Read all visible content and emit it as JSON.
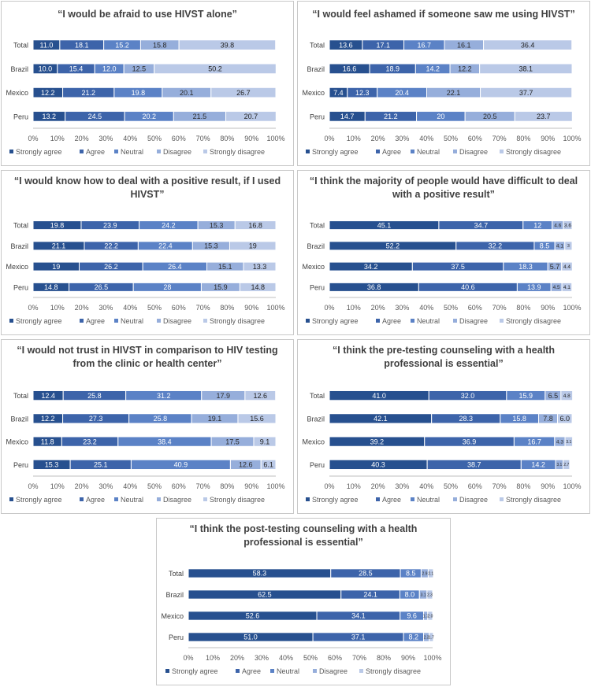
{
  "figure": {
    "legend_labels": [
      "Strongly agree",
      "Agree",
      "Neutral",
      "Disagree",
      "Strongly disagree"
    ],
    "colors": [
      "#27508f",
      "#3d64aa",
      "#5b82c6",
      "#96aedb",
      "#bac9e7"
    ],
    "label_colors": [
      "#ffffff",
      "#ffffff",
      "#ffffff",
      "#2b2b2b",
      "#1f1f1f"
    ]
  },
  "chart_data": [
    {
      "type": "bar",
      "orientation": "horizontal",
      "stacked": true,
      "title_lines": [
        "“I would be afraid to use HIVST alone”"
      ],
      "categories": [
        "Total",
        "Brazil",
        "Mexico",
        "Peru"
      ],
      "series": [
        {
          "name": "Strongly agree",
          "values": [
            11.0,
            10.0,
            12.2,
            13.2
          ],
          "labels": [
            "11.0",
            "10.0",
            "12.2",
            "13.2"
          ]
        },
        {
          "name": "Agree",
          "values": [
            18.1,
            15.4,
            21.2,
            24.5
          ],
          "labels": [
            "18.1",
            "15.4",
            "21.2",
            "24.5"
          ]
        },
        {
          "name": "Neutral",
          "values": [
            15.2,
            12.0,
            19.8,
            20.2
          ],
          "labels": [
            "15.2",
            "12.0",
            "19.8",
            "20.2"
          ]
        },
        {
          "name": "Disagree",
          "values": [
            15.8,
            12.5,
            20.1,
            21.5
          ],
          "labels": [
            "15.8",
            "12.5",
            "20.1",
            "21.5"
          ]
        },
        {
          "name": "Strongly disagree",
          "values": [
            39.8,
            50.2,
            26.7,
            20.7
          ],
          "labels": [
            "39.8",
            "50.2",
            "26.7",
            "20.7"
          ]
        }
      ],
      "xlim": [
        0,
        100
      ],
      "xticks": [
        "0%",
        "10%",
        "20%",
        "30%",
        "40%",
        "50%",
        "60%",
        "70%",
        "80%",
        "90%",
        "100%"
      ],
      "legend": "bottom"
    },
    {
      "type": "bar",
      "orientation": "horizontal",
      "stacked": true,
      "title_lines": [
        "“I would feel ashamed if someone saw me using HIVST”"
      ],
      "categories": [
        "Total",
        "Brazil",
        "Mexico",
        "Peru"
      ],
      "series": [
        {
          "name": "Strongly agree",
          "values": [
            13.6,
            16.6,
            7.4,
            14.7
          ],
          "labels": [
            "13.6",
            "16.6",
            "7.4",
            "14.7"
          ]
        },
        {
          "name": "Agree",
          "values": [
            17.1,
            18.9,
            12.3,
            21.2
          ],
          "labels": [
            "17.1",
            "18.9",
            "12.3",
            "21.2"
          ]
        },
        {
          "name": "Neutral",
          "values": [
            16.7,
            14.2,
            20.4,
            20
          ],
          "labels": [
            "16.7",
            "14.2",
            "20.4",
            "20"
          ]
        },
        {
          "name": "Disagree",
          "values": [
            16.1,
            12.2,
            22.1,
            20.5
          ],
          "labels": [
            "16.1",
            "12.2",
            "22.1",
            "20.5"
          ]
        },
        {
          "name": "Strongly disagree",
          "values": [
            36.4,
            38.1,
            37.7,
            23.7
          ],
          "labels": [
            "36.4",
            "38.1",
            "37.7",
            "23.7"
          ]
        }
      ],
      "xlim": [
        0,
        100
      ],
      "xticks": [
        "0%",
        "10%",
        "20%",
        "30%",
        "40%",
        "50%",
        "60%",
        "70%",
        "80%",
        "90%",
        "100%"
      ],
      "legend": "bottom"
    },
    {
      "type": "bar",
      "orientation": "horizontal",
      "stacked": true,
      "title_lines": [
        "“I would know how to deal with a positive result, if I used",
        "HIVST”"
      ],
      "categories": [
        "Total",
        "Brazil",
        "Mexico",
        "Peru"
      ],
      "series": [
        {
          "name": "Strongly agree",
          "values": [
            19.8,
            21.1,
            19,
            14.8
          ],
          "labels": [
            "19.8",
            "21.1",
            "19",
            "14.8"
          ]
        },
        {
          "name": "Agree",
          "values": [
            23.9,
            22.2,
            26.2,
            26.5
          ],
          "labels": [
            "23.9",
            "22.2",
            "26.2",
            "26.5"
          ]
        },
        {
          "name": "Neutral",
          "values": [
            24.2,
            22.4,
            26.4,
            28
          ],
          "labels": [
            "24.2",
            "22.4",
            "26.4",
            "28"
          ]
        },
        {
          "name": "Disagree",
          "values": [
            15.3,
            15.3,
            15.1,
            15.9
          ],
          "labels": [
            "15.3",
            "15.3",
            "15.1",
            "15.9"
          ]
        },
        {
          "name": "Strongly disagree",
          "values": [
            16.8,
            19,
            13.3,
            14.8
          ],
          "labels": [
            "16.8",
            "19",
            "13.3",
            "14.8"
          ]
        }
      ],
      "xlim": [
        0,
        100
      ],
      "xticks": [
        "0%",
        "10%",
        "20%",
        "30%",
        "40%",
        "50%",
        "60%",
        "70%",
        "80%",
        "90%",
        "100%"
      ],
      "legend": "bottom"
    },
    {
      "type": "bar",
      "orientation": "horizontal",
      "stacked": true,
      "title_lines": [
        "“I think the majority of people would have difficult to deal",
        "with a positive result”"
      ],
      "categories": [
        "Total",
        "Brazil",
        "Mexico",
        "Peru"
      ],
      "series": [
        {
          "name": "Strongly agree",
          "values": [
            45.1,
            52.2,
            34.2,
            36.8
          ],
          "labels": [
            "45.1",
            "52.2",
            "34.2",
            "36.8"
          ]
        },
        {
          "name": "Agree",
          "values": [
            34.7,
            32.2,
            37.5,
            40.6
          ],
          "labels": [
            "34.7",
            "32.2",
            "37.5",
            "40.6"
          ]
        },
        {
          "name": "Neutral",
          "values": [
            12,
            8.5,
            18.3,
            13.9
          ],
          "labels": [
            "12",
            "8.5",
            "18.3",
            "13.9"
          ]
        },
        {
          "name": "Disagree",
          "values": [
            4.6,
            4.1,
            5.7,
            4.5
          ],
          "labels": [
            "4.6",
            "4.1",
            "5.7",
            "4.5"
          ]
        },
        {
          "name": "Strongly disagree",
          "values": [
            3.6,
            3,
            4.4,
            4.1
          ],
          "labels": [
            "3.6",
            "3",
            "4.4",
            "4.1"
          ]
        }
      ],
      "xlim": [
        0,
        100
      ],
      "xticks": [
        "0%",
        "10%",
        "20%",
        "30%",
        "40%",
        "50%",
        "60%",
        "70%",
        "80%",
        "90%",
        "100%"
      ],
      "legend": "bottom"
    },
    {
      "type": "bar",
      "orientation": "horizontal",
      "stacked": true,
      "title_lines": [
        "“I would not trust in HIVST in comparison to HIV testing",
        "from the clinic or health center”"
      ],
      "categories": [
        "Total",
        "Brazil",
        "Mexico",
        "Peru"
      ],
      "series": [
        {
          "name": "Strongly agree",
          "values": [
            12.4,
            12.2,
            11.8,
            15.3
          ],
          "labels": [
            "12.4",
            "12.2",
            "11.8",
            "15.3"
          ]
        },
        {
          "name": "Agree",
          "values": [
            25.8,
            27.3,
            23.2,
            25.1
          ],
          "labels": [
            "25.8",
            "27.3",
            "23.2",
            "25.1"
          ]
        },
        {
          "name": "Neutral",
          "values": [
            31.2,
            25.8,
            38.4,
            40.9
          ],
          "labels": [
            "31.2",
            "25.8",
            "38.4",
            "40.9"
          ]
        },
        {
          "name": "Disagree",
          "values": [
            17.9,
            19.1,
            17.5,
            12.6
          ],
          "labels": [
            "17.9",
            "19.1",
            "17.5",
            "12.6"
          ]
        },
        {
          "name": "Strongly disagree",
          "values": [
            12.6,
            15.6,
            9.1,
            6.1
          ],
          "labels": [
            "12.6",
            "15.6",
            "9.1",
            "6.1"
          ]
        }
      ],
      "xlim": [
        0,
        100
      ],
      "xticks": [
        "0%",
        "10%",
        "20%",
        "30%",
        "40%",
        "50%",
        "60%",
        "70%",
        "80%",
        "90%",
        "100%"
      ],
      "legend": "bottom"
    },
    {
      "type": "bar",
      "orientation": "horizontal",
      "stacked": true,
      "title_lines": [
        "“I think the pre-testing counseling with a health",
        "professional is essential”"
      ],
      "categories": [
        "Total",
        "Brazil",
        "Mexico",
        "Peru"
      ],
      "series": [
        {
          "name": "Strongly agree",
          "values": [
            41.0,
            42.1,
            39.2,
            40.3
          ],
          "labels": [
            "41.0",
            "42.1",
            "39.2",
            "40.3"
          ]
        },
        {
          "name": "Agree",
          "values": [
            32.0,
            28.3,
            36.9,
            38.7
          ],
          "labels": [
            "32.0",
            "28.3",
            "36.9",
            "38.7"
          ]
        },
        {
          "name": "Neutral",
          "values": [
            15.9,
            15.8,
            16.7,
            14.2
          ],
          "labels": [
            "15.9",
            "15.8",
            "16.7",
            "14.2"
          ]
        },
        {
          "name": "Disagree",
          "values": [
            6.5,
            7.8,
            4.3,
            3.1
          ],
          "labels": [
            "6.5",
            "7.8",
            "4.3",
            "3.1"
          ]
        },
        {
          "name": "Strongly disagree",
          "values": [
            4.8,
            6.0,
            3.1,
            2.7
          ],
          "labels": [
            "4.8",
            "6.0",
            "3.1",
            "2.7"
          ]
        }
      ],
      "xlim": [
        0,
        100
      ],
      "xticks": [
        "0%",
        "10%",
        "20%",
        "30%",
        "40%",
        "50%",
        "60%",
        "70%",
        "80%",
        "90%",
        "100%"
      ],
      "legend": "bottom"
    },
    {
      "type": "bar",
      "orientation": "horizontal",
      "stacked": true,
      "title_lines": [
        "“I think the post-testing counseling with a health",
        "professional is essential”"
      ],
      "categories": [
        "Total",
        "Brazil",
        "Mexico",
        "Peru"
      ],
      "series": [
        {
          "name": "Strongly agree",
          "values": [
            58.3,
            62.5,
            52.6,
            51.0
          ],
          "labels": [
            "58.3",
            "62.5",
            "52.6",
            "51.0"
          ]
        },
        {
          "name": "Agree",
          "values": [
            28.5,
            24.1,
            34.1,
            37.1
          ],
          "labels": [
            "28.5",
            "24.1",
            "34.1",
            "37.1"
          ]
        },
        {
          "name": "Neutral",
          "values": [
            8.5,
            8.0,
            9.6,
            8.2
          ],
          "labels": [
            "8.5",
            "8.0",
            "9.6",
            "8.2"
          ]
        },
        {
          "name": "Disagree",
          "values": [
            2.9,
            3.1,
            1.7,
            2.3
          ],
          "labels": [
            "2.9",
            "3.1",
            "1.7",
            "2.3"
          ]
        },
        {
          "name": "Strongly disagree",
          "values": [
            2.1,
            2.3,
            2.0,
            1.7
          ],
          "labels": [
            "2.1",
            "2.3",
            "2.0",
            "1.7"
          ]
        }
      ],
      "xlim": [
        0,
        100
      ],
      "xticks": [
        "0%",
        "10%",
        "20%",
        "30%",
        "40%",
        "50%",
        "60%",
        "70%",
        "80%",
        "90%",
        "100%"
      ],
      "legend": "bottom"
    }
  ]
}
